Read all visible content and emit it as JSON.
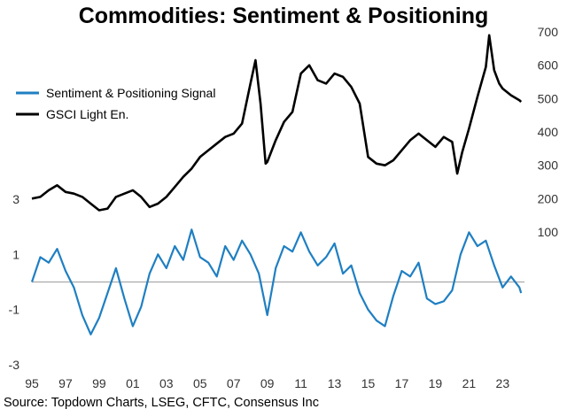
{
  "chart_data": {
    "type": "line",
    "title": "Commodities: Sentiment & Positioning",
    "source": "Source: Topdown Charts, LSEG, CFTC, Consensus Inc",
    "legend_placement": "top-left",
    "x_ticks": [
      "95",
      "97",
      "99",
      "01",
      "03",
      "05",
      "07",
      "09",
      "11",
      "13",
      "15",
      "17",
      "19",
      "21",
      "23"
    ],
    "xlim": [
      1995,
      2024.3
    ],
    "left_axis": {
      "ticks": [
        "3",
        "1",
        "-1",
        "-3"
      ],
      "tick_values": [
        3,
        1,
        -1,
        -3
      ],
      "ylim": [
        -3,
        3
      ]
    },
    "right_axis": {
      "ticks": [
        "700",
        "600",
        "500",
        "400",
        "300",
        "200",
        "100"
      ],
      "tick_values": [
        700,
        600,
        500,
        400,
        300,
        200,
        100
      ],
      "ylim": [
        100,
        700
      ]
    },
    "zero_line": 0,
    "series": [
      {
        "name": "Sentiment & Positioning Signal",
        "axis": "left",
        "color": "#1f7fc2",
        "x": [
          1995,
          1995.5,
          1996,
          1996.5,
          1997,
          1997.5,
          1998,
          1998.5,
          1999,
          1999.5,
          2000,
          2000.5,
          2001,
          2001.5,
          2002,
          2002.5,
          2003,
          2003.5,
          2004,
          2004.5,
          2005,
          2005.5,
          2006,
          2006.5,
          2007,
          2007.5,
          2008,
          2008.5,
          2009,
          2009.5,
          2010,
          2010.5,
          2011,
          2011.5,
          2012,
          2012.5,
          2013,
          2013.5,
          2014,
          2014.5,
          2015,
          2015.5,
          2016,
          2016.5,
          2017,
          2017.5,
          2018,
          2018.5,
          2019,
          2019.5,
          2020,
          2020.5,
          2021,
          2021.5,
          2022,
          2022.5,
          2023,
          2023.5,
          2024,
          2024.1
        ],
        "values": [
          0,
          0.9,
          0.7,
          1.2,
          0.4,
          -0.2,
          -1.2,
          -1.9,
          -1.3,
          -0.4,
          0.5,
          -0.6,
          -1.6,
          -0.9,
          0.3,
          1.0,
          0.5,
          1.3,
          0.8,
          1.9,
          0.9,
          0.7,
          0.2,
          1.3,
          0.8,
          1.5,
          1.0,
          0.3,
          -1.2,
          0.5,
          1.3,
          1.1,
          1.8,
          1.1,
          0.6,
          0.9,
          1.4,
          0.3,
          0.6,
          -0.4,
          -1.0,
          -1.4,
          -1.6,
          -0.5,
          0.4,
          0.2,
          0.7,
          -0.6,
          -0.8,
          -0.7,
          -0.3,
          1.0,
          1.8,
          1.3,
          1.5,
          0.6,
          -0.2,
          0.2,
          -0.2,
          -0.4
        ]
      },
      {
        "name": "GSCI Light En.",
        "axis": "right",
        "color": "#000000",
        "x": [
          1995,
          1995.5,
          1996,
          1996.5,
          1997,
          1997.5,
          1998,
          1998.5,
          1999,
          1999.5,
          2000,
          2000.5,
          2001,
          2001.5,
          2002,
          2002.5,
          2003,
          2003.5,
          2004,
          2004.5,
          2005,
          2005.5,
          2006,
          2006.5,
          2007,
          2007.5,
          2008,
          2008.3,
          2008.6,
          2008.9,
          2009,
          2009.5,
          2010,
          2010.5,
          2011,
          2011.5,
          2012,
          2012.5,
          2013,
          2013.5,
          2014,
          2014.5,
          2015,
          2015.5,
          2016,
          2016.5,
          2017,
          2017.5,
          2018,
          2018.5,
          2019,
          2019.5,
          2020,
          2020.3,
          2020.6,
          2021,
          2021.5,
          2022,
          2022.2,
          2022.5,
          2022.8,
          2023,
          2023.5,
          2024,
          2024.1
        ],
        "values": [
          200,
          205,
          225,
          240,
          220,
          215,
          205,
          185,
          165,
          170,
          205,
          215,
          225,
          205,
          175,
          185,
          205,
          235,
          265,
          290,
          325,
          345,
          365,
          385,
          395,
          425,
          545,
          615,
          485,
          305,
          310,
          375,
          430,
          460,
          575,
          600,
          555,
          545,
          575,
          565,
          535,
          485,
          325,
          305,
          300,
          315,
          345,
          375,
          395,
          375,
          355,
          385,
          370,
          275,
          340,
          410,
          505,
          595,
          690,
          585,
          545,
          530,
          510,
          495,
          490
        ]
      }
    ]
  }
}
